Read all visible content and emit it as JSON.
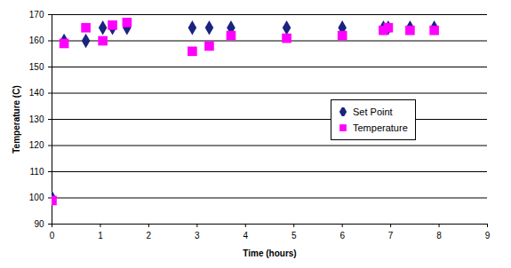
{
  "chart_data": {
    "type": "scatter",
    "x_label": "Time (hours)",
    "y_label": "Temperature (C)",
    "x": [
      0,
      0.25,
      0.7,
      1.05,
      1.25,
      1.55,
      2.9,
      3.25,
      3.7,
      4.85,
      6.0,
      6.85,
      6.95,
      7.4,
      7.9
    ],
    "series": [
      {
        "name": "Set Point",
        "color": "#1a237e",
        "marker": "diamond",
        "values": [
          100,
          160,
          160,
          165,
          165,
          165,
          165,
          165,
          165,
          165,
          165,
          165,
          165,
          165,
          165
        ]
      },
      {
        "name": "Temperature",
        "color": "#ff00ff",
        "marker": "square",
        "values": [
          99,
          159,
          165,
          160,
          166,
          167,
          156,
          158,
          162,
          161,
          162,
          164,
          165,
          164,
          164
        ]
      }
    ],
    "xlim": [
      0,
      9
    ],
    "xticks": [
      0,
      1,
      2,
      3,
      4,
      5,
      6,
      7,
      8,
      9
    ],
    "ylim": [
      90,
      170
    ],
    "yticks": [
      90,
      100,
      110,
      120,
      130,
      140,
      150,
      160,
      170
    ],
    "grid": true,
    "legend": "right"
  }
}
